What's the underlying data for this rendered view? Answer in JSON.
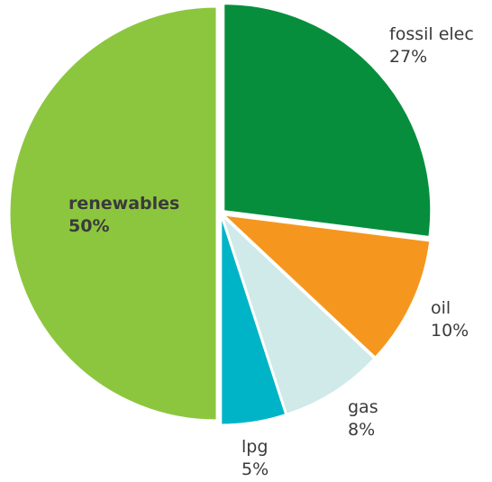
{
  "chart_data": {
    "type": "pie",
    "slices": [
      {
        "label": "fossil elec",
        "pct_text": "27%",
        "value": 27,
        "color": "#068e3c"
      },
      {
        "label": "oil",
        "pct_text": "10%",
        "value": 10,
        "color": "#f5971e"
      },
      {
        "label": "gas",
        "pct_text": "8%",
        "value": 8,
        "color": "#cfeae8"
      },
      {
        "label": "lpg",
        "pct_text": "5%",
        "value": 5,
        "color": "#00b4c8"
      },
      {
        "label": "renewables",
        "pct_text": "50%",
        "value": 50,
        "color": "#8cc63f"
      }
    ]
  }
}
